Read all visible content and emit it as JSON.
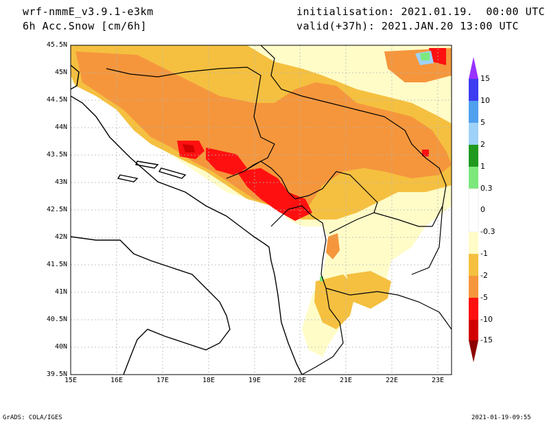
{
  "header": {
    "model": "wrf-nmmE_v3.9.1-e3km",
    "field": "6h Acc.Snow [cm/6h]",
    "init": "initialisation: 2021.01.19.  00:00 UTC",
    "valid": "valid(+37h): 2021.JAN.20 13:00 UTC"
  },
  "map": {
    "lat_ticks": [
      "45.5N",
      "45N",
      "44.5N",
      "44N",
      "43.5N",
      "43N",
      "42.5N",
      "42N",
      "41.5N",
      "41N",
      "40.5N",
      "40N",
      "39.5N"
    ],
    "lon_ticks": [
      "15E",
      "16E",
      "17E",
      "18E",
      "19E",
      "20E",
      "21E",
      "22E",
      "23E"
    ],
    "lat_range": [
      39.5,
      45.5
    ],
    "lon_range": [
      15,
      23.3
    ]
  },
  "colorbar": {
    "labels": [
      "15",
      "10",
      "5",
      "2",
      "1",
      "0.3",
      "0",
      "-0.3",
      "-1",
      "-2",
      "-5",
      "-10",
      "-15"
    ],
    "colors": [
      "#9932ff",
      "#3c3cf0",
      "#4fa0ef",
      "#9fd2f8",
      "#1f9a1f",
      "#7ce87c",
      "#ffffff",
      "#fffcc8",
      "#f5c040",
      "#f5963c",
      "#ff1010",
      "#d20000",
      "#8c0000"
    ]
  },
  "footer": {
    "left": "GrADS: COLA/IGES",
    "right": "2021-01-19-09:55"
  }
}
